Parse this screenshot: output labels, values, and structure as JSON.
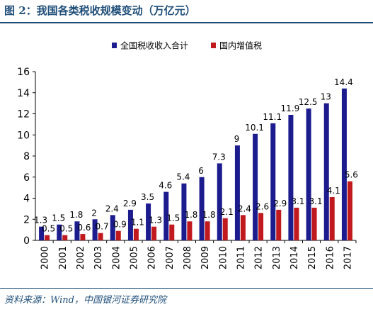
{
  "title": "图 2：我国各类税收规模变动（万亿元）",
  "source": "资料来源：Wind，中国银河证券研究院",
  "colors": {
    "total": "#1c1c8f",
    "vat": "#c0191e",
    "accent": "#1f4e79"
  },
  "chart_data": {
    "type": "bar",
    "categories": [
      "2000",
      "2001",
      "2002",
      "2003",
      "2004",
      "2005",
      "2006",
      "2007",
      "2008",
      "2009",
      "2010",
      "2011",
      "2012",
      "2013",
      "2014",
      "2015",
      "2016",
      "2017"
    ],
    "series": [
      {
        "name": "全国税收收入合计",
        "values": [
          1.3,
          1.5,
          1.8,
          2,
          2.4,
          2.9,
          3.5,
          4.6,
          5.4,
          6,
          7.3,
          9,
          10.1,
          11.1,
          11.9,
          12.5,
          13,
          14.4
        ],
        "labels": [
          "1.3",
          "1.5",
          "1.8",
          "2",
          "2.4",
          "2.9",
          "3.5",
          "4.6",
          "5.4",
          "6",
          "7.3",
          "9",
          "10.1",
          "11.1",
          "11.9",
          "12.5",
          "13",
          "14.4"
        ]
      },
      {
        "name": "国内增值税",
        "values": [
          0.5,
          0.5,
          0.6,
          0.7,
          0.9,
          1.1,
          1.3,
          1.5,
          1.8,
          1.8,
          2.1,
          2.4,
          2.6,
          2.9,
          3.1,
          3.1,
          4.1,
          5.6
        ],
        "labels": [
          "0.5",
          "0.5",
          "0.6",
          "0.7",
          "0.9",
          "1.1",
          "1.3",
          "1.5",
          "1.8",
          "1.8",
          "2.1",
          "2.4",
          "2.6",
          "2.9",
          "3.1",
          "3.1",
          "4.1",
          "5.6"
        ]
      }
    ],
    "yticks": [
      0,
      2,
      4,
      6,
      8,
      10,
      12,
      14,
      16
    ],
    "ylim": [
      0,
      16
    ],
    "legend": "top-center",
    "grid": false
  }
}
